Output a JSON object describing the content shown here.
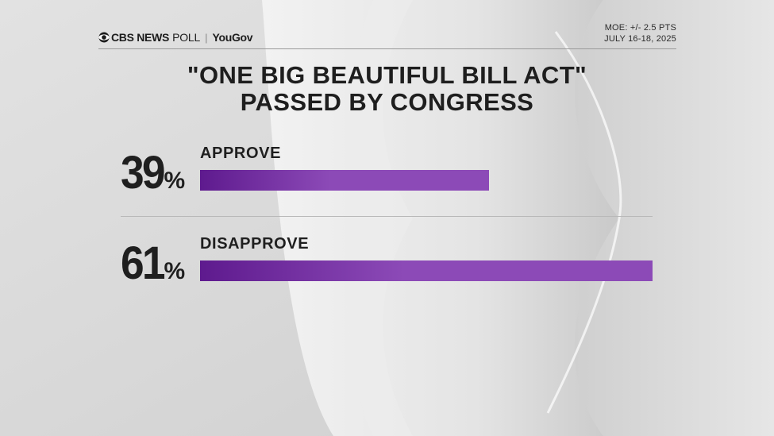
{
  "header": {
    "brand_main": "CBS NEWS",
    "brand_poll": "POLL",
    "brand_separator": "|",
    "brand_partner": "YouGov",
    "moe": "MOE: +/- 2.5 PTS",
    "dates": "JULY 16-18, 2025"
  },
  "title_line1": "\"ONE BIG BEAUTIFUL BILL ACT\"",
  "title_line2": "PASSED BY CONGRESS",
  "colors": {
    "bar_start": "#5e1a8e",
    "bar_end": "#8c4ab7",
    "text": "#1f1f1f"
  },
  "chart_data": {
    "type": "bar",
    "orientation": "horizontal",
    "categories": [
      "APPROVE",
      "DISAPPROVE"
    ],
    "values": [
      39,
      61
    ],
    "value_labels": [
      "39",
      "61"
    ],
    "unit": "%",
    "title": "\"ONE BIG BEAUTIFUL BILL ACT\" PASSED BY CONGRESS",
    "xlim": [
      0,
      61
    ]
  }
}
